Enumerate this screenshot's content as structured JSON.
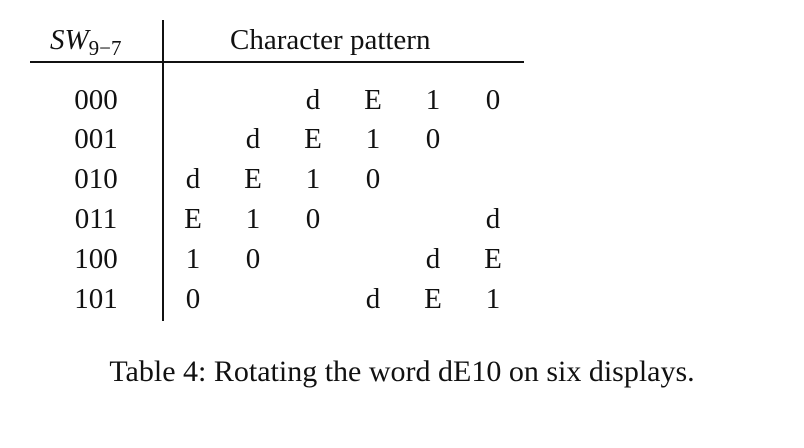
{
  "table": {
    "header": {
      "sw_main": "SW",
      "sw_sub": "9−7",
      "pattern_label": "Character pattern"
    },
    "rows": [
      {
        "code": "000",
        "chars": [
          "",
          "",
          "d",
          "E",
          "1",
          "0"
        ]
      },
      {
        "code": "001",
        "chars": [
          "",
          "d",
          "E",
          "1",
          "0",
          ""
        ]
      },
      {
        "code": "010",
        "chars": [
          "d",
          "E",
          "1",
          "0",
          "",
          ""
        ]
      },
      {
        "code": "011",
        "chars": [
          "E",
          "1",
          "0",
          "",
          "",
          "d"
        ]
      },
      {
        "code": "100",
        "chars": [
          "1",
          "0",
          "",
          "",
          "d",
          "E"
        ]
      },
      {
        "code": "101",
        "chars": [
          "0",
          "",
          "",
          "d",
          "E",
          "1"
        ]
      }
    ]
  },
  "caption": "Table 4: Rotating the word dE10 on six displays."
}
